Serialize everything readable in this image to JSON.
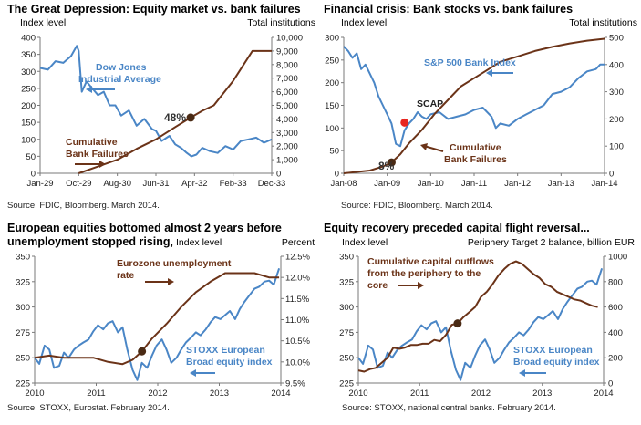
{
  "colors": {
    "equity": "#4a86c6",
    "other": "#6b3318",
    "axis": "#7a7a7a"
  },
  "chart_data": [
    {
      "type": "line",
      "title": "The Great Depression: Equity market vs. bank failures",
      "left_unit": "Index level",
      "right_unit": "Total institutions",
      "source": "Source: FDIC, Bloomberg. March 2014.",
      "xticks": [
        "Jan-29",
        "Oct-29",
        "Aug-30",
        "Jun-31",
        "Apr-32",
        "Feb-33",
        "Dec-33"
      ],
      "xlim": [
        0,
        6
      ],
      "ylim_left": [
        0,
        400
      ],
      "ylim_right": [
        0,
        10000
      ],
      "yticks_left": [
        "0",
        "50",
        "100",
        "150",
        "200",
        "250",
        "300",
        "350",
        "400"
      ],
      "yticks_right": [
        "0",
        "1,000",
        "2,000",
        "3,000",
        "4,000",
        "5,000",
        "6,000",
        "7,000",
        "8,000",
        "9,000",
        "10,000"
      ],
      "series": [
        {
          "name": "Dow Jones Industrial Average",
          "axis": "left",
          "color": "#4a86c6",
          "x": [
            0,
            0.2,
            0.4,
            0.6,
            0.8,
            0.95,
            1.0,
            1.08,
            1.2,
            1.35,
            1.5,
            1.65,
            1.8,
            1.95,
            2.1,
            2.3,
            2.5,
            2.7,
            2.9,
            3.0,
            3.15,
            3.35,
            3.5,
            3.65,
            3.8,
            3.92,
            4.05,
            4.2,
            4.4,
            4.6,
            4.8,
            5.0,
            5.2,
            5.4,
            5.6,
            5.8,
            6.0
          ],
          "y": [
            310,
            305,
            330,
            325,
            345,
            375,
            360,
            240,
            270,
            250,
            230,
            240,
            200,
            200,
            170,
            185,
            140,
            160,
            130,
            125,
            95,
            110,
            85,
            75,
            60,
            50,
            55,
            75,
            65,
            60,
            80,
            70,
            95,
            100,
            105,
            90,
            100
          ]
        },
        {
          "name": "Cumulative Bank Failures",
          "axis": "right",
          "color": "#6b3318",
          "x": [
            1.0,
            1.5,
            2.0,
            2.5,
            3.0,
            3.5,
            3.9,
            4.2,
            4.5,
            5.0,
            5.5,
            6.0
          ],
          "y": [
            0,
            500,
            1000,
            1800,
            2500,
            3400,
            4100,
            4600,
            5000,
            6800,
            9000,
            9000
          ]
        }
      ],
      "annotations": [
        {
          "text": "Dow Jones",
          "kind": "blue"
        },
        {
          "text": "Industrial Average",
          "kind": "blue"
        },
        {
          "text": "Cumulative",
          "kind": "brown"
        },
        {
          "text": "Bank Failures",
          "kind": "brown"
        },
        {
          "text": "48%",
          "kind": "pct"
        }
      ],
      "marker": {
        "x": 3.9,
        "y": 4100,
        "axis": "right"
      }
    },
    {
      "type": "line",
      "title": "Financial crisis: Bank stocks vs. bank failures",
      "left_unit": "Index level",
      "right_unit": "Total institutions",
      "source": "Source: FDIC, Bloomberg. March 2014.",
      "xticks": [
        "Jan-08",
        "Jan-09",
        "Jan-10",
        "Jan-11",
        "Jan-12",
        "Jan-13",
        "Jan-14"
      ],
      "xlim": [
        0,
        6
      ],
      "ylim_left": [
        0,
        300
      ],
      "ylim_right": [
        0,
        500
      ],
      "yticks_left": [
        "0",
        "50",
        "100",
        "150",
        "200",
        "250",
        "300"
      ],
      "yticks_right": [
        "0",
        "100",
        "200",
        "300",
        "400",
        "500"
      ],
      "series": [
        {
          "name": "S&P 500 Bank Index",
          "axis": "left",
          "color": "#4a86c6",
          "x": [
            0,
            0.1,
            0.2,
            0.3,
            0.4,
            0.5,
            0.6,
            0.7,
            0.8,
            0.9,
            1.0,
            1.1,
            1.2,
            1.3,
            1.4,
            1.5,
            1.6,
            1.7,
            1.8,
            1.9,
            2.0,
            2.2,
            2.4,
            2.6,
            2.8,
            3.0,
            3.2,
            3.4,
            3.5,
            3.6,
            3.8,
            4.0,
            4.2,
            4.4,
            4.6,
            4.8,
            5.0,
            5.2,
            5.4,
            5.6,
            5.8,
            5.9,
            6.0
          ],
          "y": [
            280,
            270,
            255,
            265,
            230,
            240,
            220,
            200,
            170,
            150,
            130,
            110,
            65,
            60,
            95,
            110,
            120,
            135,
            125,
            120,
            130,
            135,
            120,
            125,
            130,
            140,
            145,
            125,
            100,
            110,
            105,
            120,
            130,
            140,
            150,
            175,
            180,
            190,
            210,
            225,
            230,
            240,
            240
          ]
        },
        {
          "name": "Cumulative Bank Failures",
          "axis": "right",
          "color": "#6b3318",
          "x": [
            0,
            0.3,
            0.6,
            0.9,
            1.1,
            1.3,
            1.5,
            1.8,
            2.1,
            2.4,
            2.7,
            3.0,
            3.3,
            3.6,
            4.0,
            4.4,
            4.8,
            5.2,
            5.6,
            6.0
          ],
          "y": [
            0,
            5,
            10,
            25,
            40,
            70,
            110,
            160,
            220,
            270,
            320,
            350,
            380,
            410,
            430,
            450,
            465,
            478,
            488,
            495
          ]
        }
      ],
      "annotations": [
        {
          "text": "S&P 500 Bank Index",
          "kind": "blue"
        },
        {
          "text": "SCAP",
          "kind": "black"
        },
        {
          "text": "Cumulative",
          "kind": "brown"
        },
        {
          "text": "Bank Failures",
          "kind": "brown"
        },
        {
          "text": "8%",
          "kind": "pct"
        }
      ],
      "marker": {
        "x": 1.1,
        "y": 40,
        "axis": "right"
      },
      "red_marker": {
        "x": 1.4,
        "y": 112,
        "axis": "left"
      }
    },
    {
      "type": "line",
      "title": "European equities bottomed almost 2 years before",
      "title2": "unemployment stopped rising,",
      "left_unit": "Index level",
      "right_unit": "Percent",
      "source": "Source: STOXX, Eurostat. February 2014.",
      "xticks": [
        "2010",
        "2011",
        "2012",
        "2013",
        "2014"
      ],
      "xlim": [
        2010,
        2014.2
      ],
      "ylim_left": [
        225,
        350
      ],
      "ylim_right": [
        9.5,
        12.5
      ],
      "yticks_left": [
        "225",
        "250",
        "275",
        "300",
        "325",
        "350"
      ],
      "yticks_right": [
        "9.5%",
        "10.0%",
        "10.5%",
        "11.0%",
        "11.5%",
        "12.0%",
        "12.5%"
      ],
      "series": [
        {
          "name": "STOXX European Broad equity index",
          "axis": "left",
          "color": "#4a86c6",
          "x": [
            2010.0,
            2010.08,
            2010.17,
            2010.25,
            2010.33,
            2010.42,
            2010.5,
            2010.58,
            2010.67,
            2010.75,
            2010.83,
            2010.92,
            2011.0,
            2011.08,
            2011.17,
            2011.25,
            2011.33,
            2011.42,
            2011.5,
            2011.58,
            2011.67,
            2011.75,
            2011.83,
            2011.92,
            2012.0,
            2012.08,
            2012.17,
            2012.25,
            2012.33,
            2012.42,
            2012.5,
            2012.58,
            2012.67,
            2012.75,
            2012.83,
            2012.92,
            2013.0,
            2013.08,
            2013.17,
            2013.25,
            2013.33,
            2013.42,
            2013.5,
            2013.58,
            2013.67,
            2013.75,
            2013.83,
            2013.92,
            2014.0,
            2014.08,
            2014.17
          ],
          "y": [
            250,
            244,
            262,
            258,
            240,
            242,
            255,
            250,
            258,
            262,
            265,
            268,
            276,
            282,
            278,
            284,
            286,
            275,
            280,
            258,
            238,
            228,
            245,
            240,
            252,
            262,
            268,
            258,
            245,
            250,
            258,
            265,
            270,
            275,
            272,
            278,
            285,
            290,
            288,
            292,
            296,
            288,
            298,
            305,
            312,
            318,
            320,
            325,
            326,
            322,
            338
          ]
        },
        {
          "name": "Eurozone unemployment rate",
          "axis": "right",
          "color": "#6b3318",
          "x": [
            2010.0,
            2010.25,
            2010.5,
            2010.75,
            2011.0,
            2011.25,
            2011.5,
            2011.67,
            2011.83,
            2012.0,
            2012.25,
            2012.5,
            2012.75,
            2013.0,
            2013.25,
            2013.5,
            2013.75,
            2014.0,
            2014.17
          ],
          "y": [
            10.1,
            10.15,
            10.1,
            10.1,
            10.1,
            10.0,
            9.95,
            10.05,
            10.25,
            10.55,
            10.9,
            11.3,
            11.65,
            11.9,
            12.1,
            12.1,
            12.1,
            12.0,
            12.0
          ]
        }
      ],
      "annotations": [
        {
          "text": "Eurozone unemployment",
          "kind": "brown"
        },
        {
          "text": "rate",
          "kind": "brown"
        },
        {
          "text": "STOXX European",
          "kind": "blue"
        },
        {
          "text": "Broad equity index",
          "kind": "blue"
        }
      ],
      "marker": {
        "x": 2011.83,
        "y": 10.25,
        "axis": "right"
      }
    },
    {
      "type": "line",
      "title": "Equity recovery preceded capital flight reversal...",
      "left_unit": "Index level",
      "right_unit": "Periphery Target 2 balance, billion EUR",
      "source": "Source: STOXX, national central banks. February 2014.",
      "xticks": [
        "2010",
        "2011",
        "2012",
        "2013",
        "2014"
      ],
      "xlim": [
        2010,
        2014.2
      ],
      "ylim_left": [
        225,
        350
      ],
      "ylim_right": [
        0,
        1000
      ],
      "yticks_left": [
        "225",
        "250",
        "275",
        "300",
        "325",
        "350"
      ],
      "yticks_right": [
        "0",
        "200",
        "400",
        "600",
        "800",
        "1000"
      ],
      "series": [
        {
          "name": "STOXX European Broad equity index",
          "axis": "left",
          "color": "#4a86c6",
          "x": [
            2010.0,
            2010.08,
            2010.17,
            2010.25,
            2010.33,
            2010.42,
            2010.5,
            2010.58,
            2010.67,
            2010.75,
            2010.83,
            2010.92,
            2011.0,
            2011.08,
            2011.17,
            2011.25,
            2011.33,
            2011.42,
            2011.5,
            2011.58,
            2011.67,
            2011.75,
            2011.83,
            2011.92,
            2012.0,
            2012.08,
            2012.17,
            2012.25,
            2012.33,
            2012.42,
            2012.5,
            2012.58,
            2012.67,
            2012.75,
            2012.83,
            2012.92,
            2013.0,
            2013.08,
            2013.17,
            2013.25,
            2013.33,
            2013.42,
            2013.5,
            2013.58,
            2013.67,
            2013.75,
            2013.83,
            2013.92,
            2014.0,
            2014.08,
            2014.17
          ],
          "y": [
            250,
            244,
            262,
            258,
            240,
            242,
            255,
            250,
            258,
            262,
            265,
            268,
            276,
            282,
            278,
            284,
            286,
            275,
            280,
            258,
            238,
            228,
            245,
            240,
            252,
            262,
            268,
            258,
            245,
            250,
            258,
            265,
            270,
            275,
            272,
            278,
            285,
            290,
            288,
            292,
            296,
            288,
            298,
            305,
            312,
            318,
            320,
            325,
            326,
            322,
            338
          ]
        },
        {
          "name": "Cumulative capital outflows from the periphery to the core",
          "axis": "right",
          "color": "#6b3318",
          "x": [
            2010.0,
            2010.1,
            2010.2,
            2010.3,
            2010.4,
            2010.5,
            2010.6,
            2010.7,
            2010.8,
            2010.9,
            2011.0,
            2011.1,
            2011.2,
            2011.3,
            2011.4,
            2011.5,
            2011.6,
            2011.7,
            2011.8,
            2011.9,
            2012.0,
            2012.1,
            2012.2,
            2012.3,
            2012.4,
            2012.5,
            2012.6,
            2012.7,
            2012.8,
            2012.9,
            2013.0,
            2013.1,
            2013.2,
            2013.3,
            2013.4,
            2013.5,
            2013.6,
            2013.7,
            2013.8,
            2013.9,
            2014.0,
            2014.1
          ],
          "y": [
            100,
            90,
            110,
            120,
            160,
            200,
            280,
            270,
            280,
            300,
            300,
            310,
            310,
            340,
            330,
            380,
            460,
            470,
            520,
            560,
            600,
            680,
            720,
            780,
            850,
            900,
            940,
            960,
            940,
            900,
            860,
            830,
            780,
            760,
            720,
            700,
            680,
            660,
            650,
            630,
            610,
            600
          ]
        }
      ],
      "annotations": [
        {
          "text": "Cumulative capital outflows",
          "kind": "brown"
        },
        {
          "text": "from the periphery to the",
          "kind": "brown"
        },
        {
          "text": "core",
          "kind": "brown"
        },
        {
          "text": "STOXX European",
          "kind": "blue"
        },
        {
          "text": "Broad equity index",
          "kind": "blue"
        }
      ],
      "marker": {
        "x": 2011.7,
        "y": 470,
        "axis": "right"
      }
    }
  ]
}
